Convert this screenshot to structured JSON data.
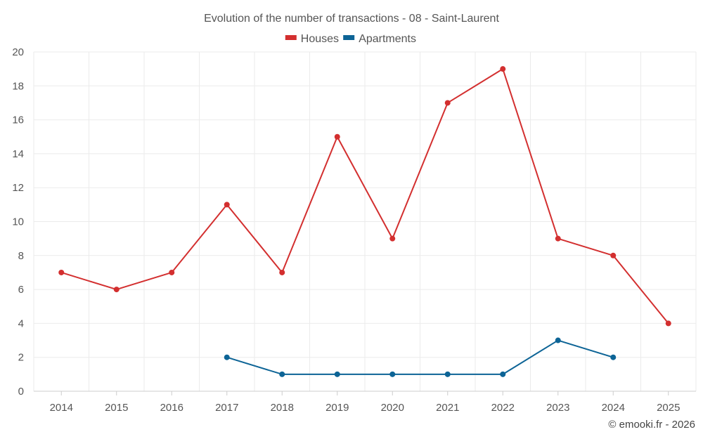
{
  "chart_data": {
    "type": "line",
    "title": "Evolution of the number of transactions - 08 - Saint-Laurent",
    "categories": [
      "2014",
      "2015",
      "2016",
      "2017",
      "2018",
      "2019",
      "2020",
      "2021",
      "2022",
      "2023",
      "2024",
      "2025"
    ],
    "series": [
      {
        "name": "Houses",
        "color": "#d32f2f",
        "values": [
          7,
          6,
          7,
          11,
          7,
          15,
          9,
          17,
          19,
          9,
          8,
          4
        ]
      },
      {
        "name": "Apartments",
        "color": "#0d6496",
        "values": [
          null,
          null,
          null,
          2,
          1,
          1,
          1,
          1,
          1,
          3,
          2,
          null
        ]
      }
    ],
    "xlabel": "",
    "ylabel": "",
    "ylim": [
      0,
      20
    ],
    "yticks": [
      0,
      2,
      4,
      6,
      8,
      10,
      12,
      14,
      16,
      18,
      20
    ],
    "grid": true,
    "legend_position": "top-center"
  },
  "footer": {
    "credit": "© emooki.fr - 2026"
  }
}
